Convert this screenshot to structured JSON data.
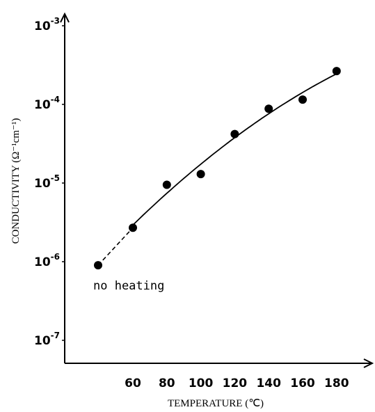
{
  "chart_data": {
    "type": "scatter",
    "title": "",
    "xlabel": "TEMPERATURE (℃)",
    "ylabel": "CONDUCTIVITY (Ω⁻¹cm⁻¹)",
    "x_ticks": [
      "60",
      "80",
      "100",
      "120",
      "140",
      "160",
      "180"
    ],
    "y_ticks": [
      {
        "value": -3,
        "base": "10",
        "exp": "-3"
      },
      {
        "value": -4,
        "base": "10",
        "exp": "-4"
      },
      {
        "value": -5,
        "base": "10",
        "exp": "-5"
      },
      {
        "value": -6,
        "base": "10",
        "exp": "-6"
      },
      {
        "value": -7,
        "base": "10",
        "exp": "-7"
      }
    ],
    "y_scale": "log",
    "xlim": [
      33,
      195
    ],
    "ylim": [
      1.9e-08,
      0.0015
    ],
    "grid": false,
    "series": [
      {
        "points": [
          {
            "x": null,
            "y": 9e-07
          },
          {
            "x": 60,
            "y": 2.7e-06
          },
          {
            "x": 80,
            "y": 9.5e-06
          },
          {
            "x": 100,
            "y": 1.3e-05
          },
          {
            "x": 120,
            "y": 4.2e-05
          },
          {
            "x": 140,
            "y": 8.8e-05
          },
          {
            "x": 160,
            "y": 0.000115
          },
          {
            "x": 180,
            "y": 0.000265
          }
        ]
      }
    ],
    "annotations": [
      {
        "text": "no heating"
      }
    ]
  }
}
